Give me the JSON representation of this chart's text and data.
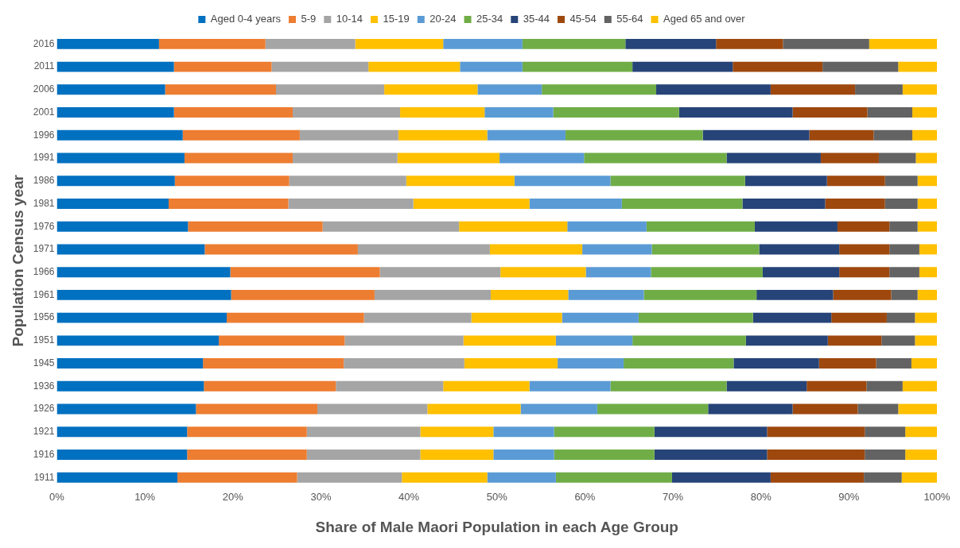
{
  "chart_data": {
    "type": "bar",
    "orientation": "horizontal",
    "stacked": true,
    "xlabel": "Share of Male Maori Population in each Age Group",
    "ylabel": "Population Census year",
    "legend": "top",
    "grid": false,
    "categories": [
      "2016",
      "2011",
      "2006",
      "2001",
      "1996",
      "1991",
      "1986",
      "1981",
      "1976",
      "1971",
      "1966",
      "1961",
      "1956",
      "1951",
      "1945",
      "1936",
      "1926",
      "1921",
      "1916",
      "1911"
    ],
    "xlim": [
      0,
      100
    ],
    "xticks": [
      {
        "value": 0,
        "label": "0%"
      },
      {
        "value": 10,
        "label": "10%"
      },
      {
        "value": 20,
        "label": "20%"
      },
      {
        "value": 30,
        "label": "30%"
      },
      {
        "value": 40,
        "label": "40%"
      },
      {
        "value": 50,
        "label": "50%"
      },
      {
        "value": 60,
        "label": "60%"
      },
      {
        "value": 70,
        "label": "70%"
      },
      {
        "value": 80,
        "label": "80%"
      },
      {
        "value": 90,
        "label": "90%"
      },
      {
        "value": 100,
        "label": "100%"
      }
    ],
    "series": [
      {
        "name": "Aged 0-4 years",
        "color": "#0070c0",
        "values": [
          11.6,
          13.3,
          12.3,
          13.3,
          14.3,
          14.5,
          13.4,
          12.7,
          14.9,
          16.8,
          19.7,
          19.8,
          19.3,
          18.4,
          16.6,
          16.7,
          15.8,
          14.8,
          14.8,
          13.7
        ]
      },
      {
        "name": "5-9",
        "color": "#ed7d31",
        "values": [
          12.1,
          11.1,
          12.6,
          13.5,
          13.3,
          12.3,
          13.0,
          13.6,
          15.3,
          17.4,
          17.0,
          16.3,
          15.6,
          14.3,
          16.0,
          15.0,
          13.8,
          13.6,
          13.6,
          13.6
        ]
      },
      {
        "name": "10-14",
        "color": "#a5a5a5",
        "values": [
          10.2,
          11.0,
          12.3,
          12.2,
          11.2,
          11.9,
          13.3,
          14.2,
          15.5,
          15.0,
          13.7,
          13.2,
          12.2,
          13.5,
          13.7,
          12.2,
          12.5,
          12.9,
          12.9,
          11.9
        ]
      },
      {
        "name": "15-19",
        "color": "#ffc000",
        "values": [
          10.0,
          10.4,
          10.6,
          9.6,
          10.1,
          11.6,
          12.3,
          13.2,
          12.3,
          10.5,
          9.7,
          8.8,
          10.3,
          10.5,
          10.6,
          9.8,
          10.6,
          8.3,
          8.3,
          9.7
        ]
      },
      {
        "name": "20-24",
        "color": "#5b9bd5",
        "values": [
          9.0,
          7.1,
          7.3,
          7.8,
          8.9,
          9.6,
          10.9,
          10.5,
          9.0,
          7.9,
          7.4,
          8.6,
          8.7,
          8.7,
          7.5,
          9.2,
          8.7,
          6.9,
          6.9,
          7.8
        ]
      },
      {
        "name": "25-34",
        "color": "#70ad47",
        "values": [
          11.7,
          12.5,
          13.0,
          14.3,
          15.6,
          16.2,
          15.3,
          13.7,
          12.3,
          12.2,
          12.7,
          12.8,
          13.0,
          12.9,
          12.5,
          13.2,
          12.6,
          11.4,
          11.4,
          13.2
        ]
      },
      {
        "name": "35-44",
        "color": "#264478",
        "values": [
          10.3,
          11.4,
          13.0,
          12.9,
          12.1,
          10.7,
          9.3,
          9.4,
          9.4,
          9.1,
          8.7,
          8.7,
          8.9,
          9.3,
          9.7,
          9.1,
          9.6,
          12.8,
          12.8,
          11.2
        ]
      },
      {
        "name": "45-54",
        "color": "#9e480e",
        "values": [
          7.6,
          10.2,
          9.6,
          8.5,
          7.3,
          6.6,
          6.6,
          6.8,
          5.9,
          5.7,
          5.7,
          6.6,
          6.3,
          6.1,
          6.5,
          6.8,
          7.4,
          11.1,
          11.1,
          10.6
        ]
      },
      {
        "name": "55-64",
        "color": "#636363",
        "values": [
          9.8,
          8.6,
          5.4,
          5.1,
          4.4,
          4.2,
          3.7,
          3.7,
          3.2,
          3.4,
          3.4,
          3.0,
          3.2,
          3.8,
          4.0,
          4.1,
          4.6,
          4.6,
          4.6,
          4.3
        ]
      },
      {
        "name": "Aged 65 and over",
        "color": "#ffc000",
        "values": [
          7.7,
          4.4,
          3.9,
          2.8,
          2.8,
          2.4,
          2.2,
          2.2,
          2.2,
          2.0,
          2.0,
          2.2,
          2.5,
          2.5,
          2.9,
          3.9,
          4.4,
          3.6,
          3.6,
          4.0
        ]
      }
    ]
  }
}
